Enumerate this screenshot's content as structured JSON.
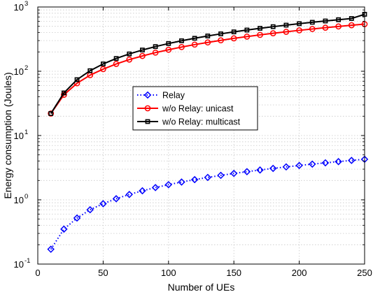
{
  "chart_data": {
    "type": "line",
    "xlabel": "Number of UEs",
    "ylabel": "Energy consumption (Joules)",
    "x_scale": "linear",
    "y_scale": "log",
    "xlim": [
      0,
      250
    ],
    "ylim": [
      0.1,
      1000
    ],
    "grid": true,
    "legend_position": "center",
    "x_tick_labels": [
      "0",
      "50",
      "100",
      "150",
      "200",
      "250"
    ],
    "x_ticks": [
      0,
      50,
      100,
      150,
      200,
      250
    ],
    "y_ticks": [
      0.1,
      1,
      10,
      100,
      1000
    ],
    "y_tick_labels": [
      {
        "base": "10",
        "exp": "-1"
      },
      {
        "base": "10",
        "exp": "0"
      },
      {
        "base": "10",
        "exp": "1"
      },
      {
        "base": "10",
        "exp": "2"
      },
      {
        "base": "10",
        "exp": "3"
      }
    ],
    "x": [
      10,
      20,
      30,
      40,
      50,
      60,
      70,
      80,
      90,
      100,
      110,
      120,
      130,
      140,
      150,
      160,
      170,
      180,
      190,
      200,
      210,
      220,
      230,
      240,
      250
    ],
    "series": [
      {
        "name": "Relay",
        "color": "#0000ff",
        "line_style": "dotted",
        "marker": "diamond",
        "values": [
          0.17,
          0.35,
          0.52,
          0.7,
          0.87,
          1.04,
          1.21,
          1.38,
          1.55,
          1.72,
          1.89,
          2.06,
          2.23,
          2.4,
          2.57,
          2.74,
          2.91,
          3.08,
          3.25,
          3.42,
          3.59,
          3.76,
          3.93,
          4.1,
          4.27
        ]
      },
      {
        "name": "w/o Relay: unicast",
        "color": "#ff0000",
        "line_style": "solid",
        "marker": "circle",
        "values": [
          22,
          43,
          65,
          87,
          108,
          130,
          152,
          173,
          195,
          216,
          238,
          260,
          281,
          303,
          325,
          346,
          368,
          390,
          411,
          433,
          455,
          476,
          498,
          520,
          541
        ]
      },
      {
        "name": "w/o Relay: multicast",
        "color": "#000000",
        "line_style": "solid",
        "marker": "square",
        "values": [
          22,
          46,
          74,
          102,
          130,
          158,
          186,
          214,
          242,
          270,
          298,
          326,
          354,
          382,
          410,
          438,
          466,
          494,
          522,
          550,
          578,
          606,
          634,
          662,
          770
        ]
      }
    ]
  }
}
